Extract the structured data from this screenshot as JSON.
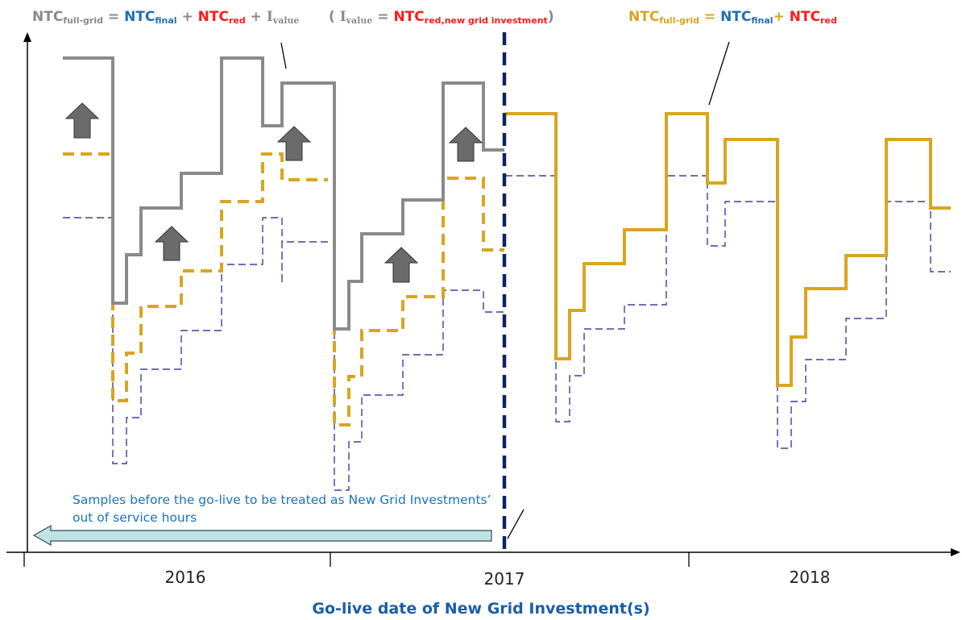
{
  "formula_left": {
    "lhs": "NTC",
    "lhs_sub": "full-grid",
    "eq": " = ",
    "t1": "NTC",
    "t1_sub": "final",
    "p1": " + ",
    "t2": "NTC",
    "t2_sub": "red",
    "p2": " + ",
    "t3": "I",
    "t3_sub": "value"
  },
  "formula_paren": {
    "open": "( ",
    "i": "I",
    "i_sub": "value",
    "eq": " = ",
    "t": "NTC",
    "t_sub": "red,new grid investment",
    "close": ")"
  },
  "formula_right": {
    "lhs": "NTC",
    "lhs_sub": "full-grid",
    "eq": " = ",
    "t1": "NTC",
    "t1_sub": "final",
    "p1": "+ ",
    "t2": "NTC",
    "t2_sub": "red"
  },
  "note_text": "Samples before the go-live to be treated as New Grid Investments’ out of service hours",
  "ticks": {
    "y2016": "2016",
    "y2017": "2017",
    "y2018": "2018"
  },
  "x_axis_title": "Go-live date of New Grid Investment(s)",
  "colors": {
    "gray": "#8a8a8a",
    "gold": "#d9a520",
    "navy": "#0d2260",
    "blue_dashed": "#3d3f9e",
    "blue_text": "#1f6fb5",
    "red_text": "#ff1a1a",
    "arrow_fill": "#6b6b6b",
    "note_arrow_fill": "#bfe3e1"
  },
  "icons": {
    "up_arrows": "up-arrow-icon",
    "left_arrow": "left-arrow-icon"
  }
}
